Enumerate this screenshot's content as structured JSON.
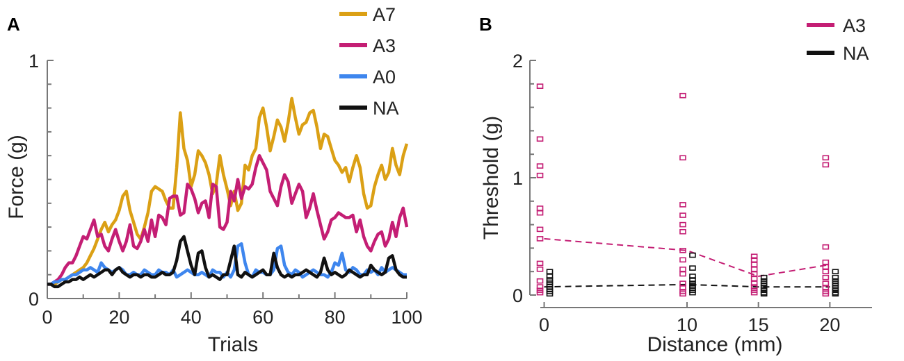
{
  "chart_data": [
    {
      "panel": "A",
      "type": "line",
      "xlabel": "Trials",
      "ylabel": "Force (g)",
      "xlim": [
        0,
        100
      ],
      "ylim": [
        0,
        1
      ],
      "xticks": [
        0,
        20,
        40,
        60,
        80,
        100
      ],
      "yticks": [
        0,
        1
      ],
      "legend": [
        "A7",
        "A3",
        "A0",
        "NA"
      ],
      "legend_position": "top-right",
      "x": [
        0,
        1,
        2,
        3,
        4,
        5,
        6,
        7,
        8,
        9,
        10,
        11,
        12,
        13,
        14,
        15,
        16,
        17,
        18,
        19,
        20,
        21,
        22,
        23,
        24,
        25,
        26,
        27,
        28,
        29,
        30,
        31,
        32,
        33,
        34,
        35,
        36,
        37,
        38,
        39,
        40,
        41,
        42,
        43,
        44,
        45,
        46,
        47,
        48,
        49,
        50,
        51,
        52,
        53,
        54,
        55,
        56,
        57,
        58,
        59,
        60,
        61,
        62,
        63,
        64,
        65,
        66,
        67,
        68,
        69,
        70,
        71,
        72,
        73,
        74,
        75,
        76,
        77,
        78,
        79,
        80,
        81,
        82,
        83,
        84,
        85,
        86,
        87,
        88,
        89,
        90,
        91,
        92,
        93,
        94,
        95,
        96,
        97,
        98,
        99,
        100
      ],
      "series": [
        {
          "name": "A7",
          "color": "#DBA015",
          "values": [
            0.06,
            0.06,
            0.06,
            0.07,
            0.08,
            0.08,
            0.09,
            0.1,
            0.11,
            0.12,
            0.13,
            0.15,
            0.18,
            0.21,
            0.25,
            0.29,
            0.32,
            0.28,
            0.31,
            0.33,
            0.37,
            0.43,
            0.45,
            0.37,
            0.32,
            0.27,
            0.25,
            0.3,
            0.36,
            0.45,
            0.47,
            0.46,
            0.45,
            0.41,
            0.38,
            0.38,
            0.55,
            0.78,
            0.63,
            0.58,
            0.47,
            0.52,
            0.62,
            0.6,
            0.57,
            0.52,
            0.44,
            0.48,
            0.6,
            0.52,
            0.46,
            0.39,
            0.45,
            0.37,
            0.4,
            0.56,
            0.54,
            0.6,
            0.63,
            0.76,
            0.8,
            0.72,
            0.62,
            0.68,
            0.75,
            0.72,
            0.66,
            0.74,
            0.84,
            0.76,
            0.69,
            0.73,
            0.74,
            0.78,
            0.79,
            0.72,
            0.63,
            0.69,
            0.68,
            0.63,
            0.58,
            0.56,
            0.53,
            0.55,
            0.49,
            0.55,
            0.6,
            0.55,
            0.44,
            0.38,
            0.39,
            0.47,
            0.52,
            0.56,
            0.5,
            0.53,
            0.63,
            0.56,
            0.52,
            0.6,
            0.65
          ],
          "__unused": 0
        },
        {
          "name": "A3",
          "color": "#C41E74",
          "values": [
            0.06,
            0.06,
            0.07,
            0.08,
            0.1,
            0.13,
            0.15,
            0.15,
            0.18,
            0.22,
            0.26,
            0.25,
            0.29,
            0.33,
            0.26,
            0.27,
            0.22,
            0.2,
            0.25,
            0.29,
            0.24,
            0.2,
            0.24,
            0.31,
            0.22,
            0.21,
            0.24,
            0.29,
            0.24,
            0.33,
            0.26,
            0.35,
            0.34,
            0.31,
            0.42,
            0.43,
            0.43,
            0.35,
            0.36,
            0.48,
            0.46,
            0.42,
            0.36,
            0.4,
            0.41,
            0.34,
            0.48,
            0.47,
            0.3,
            0.29,
            0.32,
            0.45,
            0.41,
            0.5,
            0.42,
            0.47,
            0.46,
            0.48,
            0.55,
            0.6,
            0.57,
            0.54,
            0.45,
            0.42,
            0.39,
            0.47,
            0.52,
            0.49,
            0.4,
            0.44,
            0.48,
            0.45,
            0.34,
            0.38,
            0.44,
            0.37,
            0.31,
            0.25,
            0.28,
            0.33,
            0.34,
            0.36,
            0.35,
            0.34,
            0.34,
            0.35,
            0.28,
            0.33,
            0.26,
            0.22,
            0.2,
            0.24,
            0.27,
            0.28,
            0.22,
            0.25,
            0.32,
            0.26,
            0.34,
            0.38,
            0.3
          ],
          "__unused": 0
        },
        {
          "name": "A0",
          "color": "#3E86EE",
          "values": [
            0.06,
            0.06,
            0.07,
            0.07,
            0.08,
            0.08,
            0.09,
            0.1,
            0.1,
            0.11,
            0.12,
            0.12,
            0.13,
            0.12,
            0.11,
            0.15,
            0.13,
            0.12,
            0.11,
            0.12,
            0.13,
            0.12,
            0.1,
            0.1,
            0.11,
            0.1,
            0.1,
            0.12,
            0.11,
            0.1,
            0.1,
            0.12,
            0.11,
            0.11,
            0.1,
            0.12,
            0.09,
            0.1,
            0.11,
            0.12,
            0.11,
            0.1,
            0.1,
            0.11,
            0.1,
            0.09,
            0.12,
            0.11,
            0.11,
            0.09,
            0.11,
            0.09,
            0.12,
            0.22,
            0.23,
            0.15,
            0.1,
            0.09,
            0.12,
            0.11,
            0.11,
            0.1,
            0.1,
            0.12,
            0.21,
            0.22,
            0.14,
            0.11,
            0.1,
            0.12,
            0.11,
            0.09,
            0.1,
            0.11,
            0.12,
            0.11,
            0.1,
            0.1,
            0.09,
            0.11,
            0.15,
            0.14,
            0.19,
            0.12,
            0.11,
            0.13,
            0.12,
            0.1,
            0.1,
            0.12,
            0.11,
            0.12,
            0.1,
            0.13,
            0.11,
            0.12,
            0.13,
            0.12,
            0.11,
            0.1,
            0.1
          ],
          "__unused": 0
        },
        {
          "name": "NA",
          "color": "#111111",
          "values": [
            0.06,
            0.06,
            0.05,
            0.05,
            0.06,
            0.07,
            0.07,
            0.08,
            0.08,
            0.09,
            0.08,
            0.09,
            0.1,
            0.09,
            0.1,
            0.11,
            0.12,
            0.12,
            0.1,
            0.12,
            0.13,
            0.11,
            0.1,
            0.09,
            0.1,
            0.1,
            0.09,
            0.1,
            0.1,
            0.09,
            0.09,
            0.1,
            0.11,
            0.1,
            0.1,
            0.11,
            0.16,
            0.24,
            0.26,
            0.2,
            0.14,
            0.1,
            0.19,
            0.2,
            0.13,
            0.09,
            0.1,
            0.09,
            0.08,
            0.1,
            0.1,
            0.16,
            0.22,
            0.1,
            0.09,
            0.11,
            0.1,
            0.09,
            0.1,
            0.11,
            0.12,
            0.1,
            0.1,
            0.19,
            0.13,
            0.1,
            0.09,
            0.1,
            0.09,
            0.1,
            0.1,
            0.11,
            0.12,
            0.11,
            0.1,
            0.09,
            0.11,
            0.17,
            0.12,
            0.1,
            0.11,
            0.1,
            0.09,
            0.1,
            0.12,
            0.11,
            0.1,
            0.09,
            0.1,
            0.1,
            0.14,
            0.12,
            0.11,
            0.1,
            0.11,
            0.17,
            0.18,
            0.12,
            0.1,
            0.09,
            0.09
          ],
          "__unused": 0
        }
      ]
    },
    {
      "panel": "B",
      "type": "scatter",
      "xlabel": "Distance (mm)",
      "ylabel": "Threshold (g)",
      "xlim": [
        -1,
        23
      ],
      "ylim": [
        0,
        2
      ],
      "xticks": [
        0,
        10,
        15,
        20
      ],
      "yticks": [
        0,
        1,
        2
      ],
      "legend": [
        "A3",
        "NA"
      ],
      "legend_position": "top-right",
      "series": [
        {
          "name": "A3",
          "color": "#C41E74",
          "marker": "open-square",
          "points": {
            "0": [
              1.78,
              1.33,
              1.1,
              1.02,
              0.74,
              0.7,
              0.56,
              0.48,
              0.27,
              0.22,
              0.12,
              0.07,
              0.04,
              0.02
            ],
            "10": [
              1.7,
              1.17,
              0.77,
              0.68,
              0.6,
              0.54,
              0.38,
              0.3,
              0.22,
              0.18,
              0.1,
              0.06,
              0.03,
              0.01
            ],
            "15": [
              0.33,
              0.3,
              0.26,
              0.22,
              0.18,
              0.14,
              0.1,
              0.07,
              0.04,
              0.02
            ],
            "20": [
              1.17,
              1.11,
              0.41,
              0.28,
              0.24,
              0.2,
              0.15,
              0.1,
              0.06,
              0.03,
              0.01
            ]
          },
          "mean_line": [
            [
              0,
              0.48
            ],
            [
              10,
              0.38
            ],
            [
              15,
              0.16
            ],
            [
              20,
              0.26
            ]
          ]
        },
        {
          "name": "NA",
          "color": "#111111",
          "marker": "open-square",
          "points": {
            "0": [
              0.2,
              0.16,
              0.13,
              0.11,
              0.09,
              0.07,
              0.05,
              0.03,
              0.01
            ],
            "10": [
              0.34,
              0.23,
              0.16,
              0.13,
              0.1,
              0.08,
              0.06,
              0.04,
              0.02
            ],
            "15": [
              0.15,
              0.12,
              0.1,
              0.08,
              0.06,
              0.04,
              0.02,
              0.01
            ],
            "20": [
              0.2,
              0.15,
              0.12,
              0.1,
              0.08,
              0.06,
              0.04,
              0.02,
              0.01
            ]
          },
          "mean_line": [
            [
              0,
              0.07
            ],
            [
              10,
              0.09
            ],
            [
              15,
              0.07
            ],
            [
              20,
              0.07
            ]
          ]
        }
      ]
    }
  ],
  "panels": {
    "a_letter": "A",
    "b_letter": "B"
  }
}
